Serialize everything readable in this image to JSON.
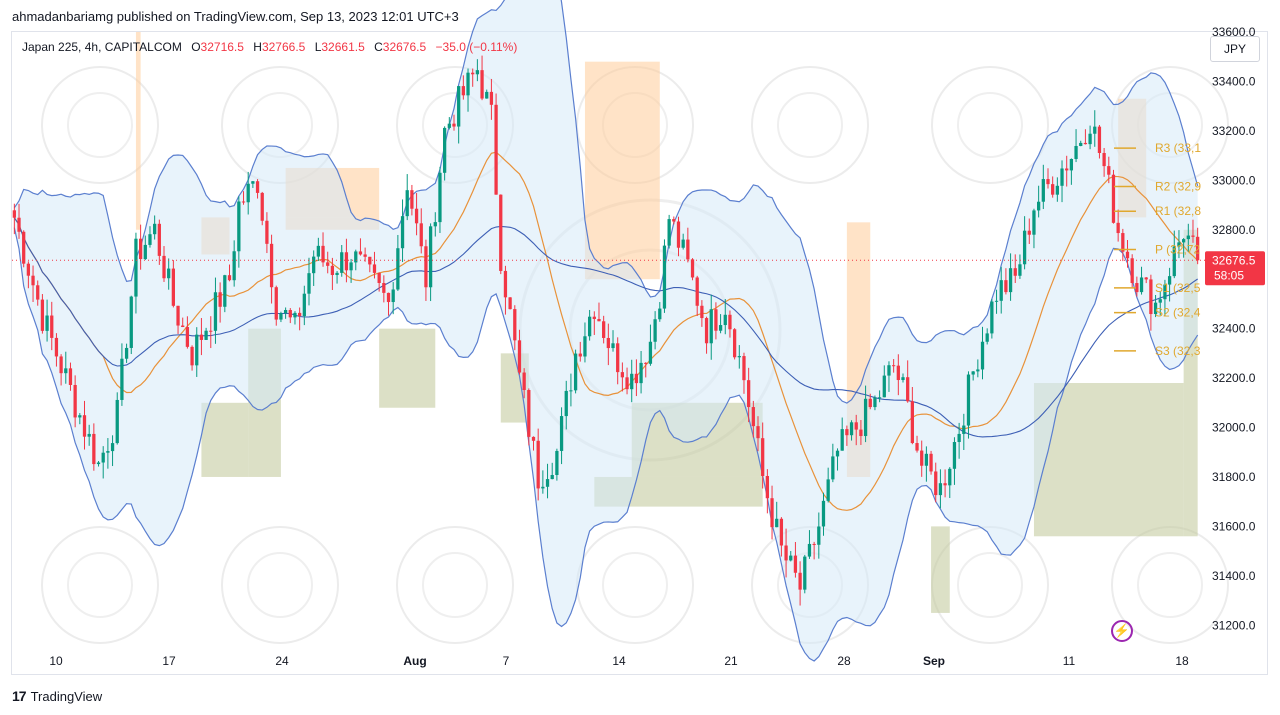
{
  "publisher_line": "ahmadanbariamg published on TradingView.com, Sep 13, 2023 12:01 UTC+3",
  "legend": {
    "symbol": "Japan 225, 4h, CAPITALCOM",
    "open_label": "O",
    "open": "32716.5",
    "high_label": "H",
    "high": "32766.5",
    "low_label": "L",
    "low": "32661.5",
    "close_label": "C",
    "close": "32676.5",
    "change": "−35.0 (−0.11%)"
  },
  "currency_button": "JPY",
  "footer_brand": "TradingView",
  "colors": {
    "up": "#089981",
    "down": "#f23645",
    "band": "#5b7fcf",
    "mid_ma": "#e8923a",
    "supply": "#ffcc99",
    "demand": "#c5cba0",
    "pivot": "#e0a82e",
    "price_tag": "#f23645"
  },
  "icons": {
    "alert": "lightning-icon",
    "logo": "tradingview-logo-icon"
  },
  "chart_data": {
    "type": "candlestick",
    "instrument": "Japan 225",
    "timeframe": "4h",
    "x_ticks": [
      "10",
      "17",
      "24",
      "Aug",
      "7",
      "14",
      "21",
      "28",
      "Sep",
      "11",
      "18"
    ],
    "y_ticks": [
      31200,
      31400,
      31600,
      31800,
      32000,
      32200,
      32400,
      32600,
      32800,
      33000,
      33200,
      33400,
      33600
    ],
    "y_range": [
      31100,
      33600
    ],
    "last_price": "32676.5",
    "countdown": "58:05",
    "pivot_levels": [
      {
        "label": "R3 (33,1",
        "value": 33130
      },
      {
        "label": "R2 (32,9",
        "value": 32975
      },
      {
        "label": "R1 (32,8",
        "value": 32875
      },
      {
        "label": "P (32,72",
        "value": 32720
      },
      {
        "label": "S1 (32,5",
        "value": 32565
      },
      {
        "label": "S2 (32,4",
        "value": 32465
      },
      {
        "label": "S3 (32,3",
        "value": 32310
      }
    ],
    "close_path": [
      [
        0,
        32850
      ],
      [
        6,
        32450
      ],
      [
        12,
        32150
      ],
      [
        18,
        31850
      ],
      [
        22,
        32050
      ],
      [
        26,
        32700
      ],
      [
        30,
        32800
      ],
      [
        34,
        32500
      ],
      [
        38,
        32300
      ],
      [
        42,
        32450
      ],
      [
        46,
        32600
      ],
      [
        48,
        32900
      ],
      [
        52,
        33000
      ],
      [
        56,
        32500
      ],
      [
        60,
        32400
      ],
      [
        64,
        32700
      ],
      [
        68,
        32650
      ],
      [
        72,
        32700
      ],
      [
        76,
        32600
      ],
      [
        80,
        32500
      ],
      [
        84,
        33000
      ],
      [
        88,
        32600
      ],
      [
        92,
        33200
      ],
      [
        96,
        33350
      ],
      [
        99,
        33450
      ],
      [
        102,
        33250
      ],
      [
        104,
        32700
      ],
      [
        108,
        32200
      ],
      [
        112,
        31800
      ],
      [
        116,
        31900
      ],
      [
        120,
        32300
      ],
      [
        124,
        32500
      ],
      [
        128,
        32300
      ],
      [
        132,
        32200
      ],
      [
        136,
        32350
      ],
      [
        138,
        32550
      ],
      [
        140,
        32850
      ],
      [
        144,
        32650
      ],
      [
        148,
        32400
      ],
      [
        152,
        32500
      ],
      [
        156,
        32200
      ],
      [
        160,
        31800
      ],
      [
        164,
        31500
      ],
      [
        168,
        31350
      ],
      [
        172,
        31600
      ],
      [
        176,
        31900
      ],
      [
        180,
        32000
      ],
      [
        184,
        32100
      ],
      [
        188,
        32250
      ],
      [
        190,
        32150
      ],
      [
        194,
        31850
      ],
      [
        198,
        31750
      ],
      [
        202,
        32000
      ],
      [
        206,
        32300
      ],
      [
        210,
        32550
      ],
      [
        214,
        32600
      ],
      [
        218,
        32900
      ],
      [
        222,
        33000
      ],
      [
        226,
        33100
      ],
      [
        230,
        33250
      ],
      [
        233,
        33050
      ],
      [
        236,
        32800
      ],
      [
        240,
        32600
      ],
      [
        244,
        32500
      ],
      [
        248,
        32700
      ],
      [
        250,
        32800
      ],
      [
        253,
        32676
      ]
    ],
    "supply_zones": [
      {
        "x0": 26,
        "x1": 27,
        "low": 32800,
        "high": 33600
      },
      {
        "x0": 40,
        "x1": 46,
        "low": 32700,
        "high": 32850
      },
      {
        "x0": 58,
        "x1": 78,
        "low": 32800,
        "high": 32850
      },
      {
        "x0": 58,
        "x1": 78,
        "low": 32850,
        "high": 33050
      },
      {
        "x0": 122,
        "x1": 138,
        "low": 32600,
        "high": 33480
      },
      {
        "x0": 178,
        "x1": 183,
        "low": 31800,
        "high": 32830
      },
      {
        "x0": 236,
        "x1": 242,
        "low": 32850,
        "high": 33330
      }
    ],
    "demand_zones": [
      {
        "x0": 40,
        "x1": 50,
        "low": 31800,
        "high": 32100
      },
      {
        "x0": 50,
        "x1": 57,
        "low": 31800,
        "high": 32400
      },
      {
        "x0": 78,
        "x1": 90,
        "low": 32080,
        "high": 32400
      },
      {
        "x0": 104,
        "x1": 110,
        "low": 32020,
        "high": 32300
      },
      {
        "x0": 124,
        "x1": 160,
        "low": 31680,
        "high": 31800
      },
      {
        "x0": 132,
        "x1": 160,
        "low": 31800,
        "high": 32100
      },
      {
        "x0": 196,
        "x1": 200,
        "low": 31250,
        "high": 31600
      },
      {
        "x0": 218,
        "x1": 250,
        "low": 31560,
        "high": 32180
      },
      {
        "x0": 250,
        "x1": 253,
        "low": 31560,
        "high": 32800
      }
    ]
  }
}
